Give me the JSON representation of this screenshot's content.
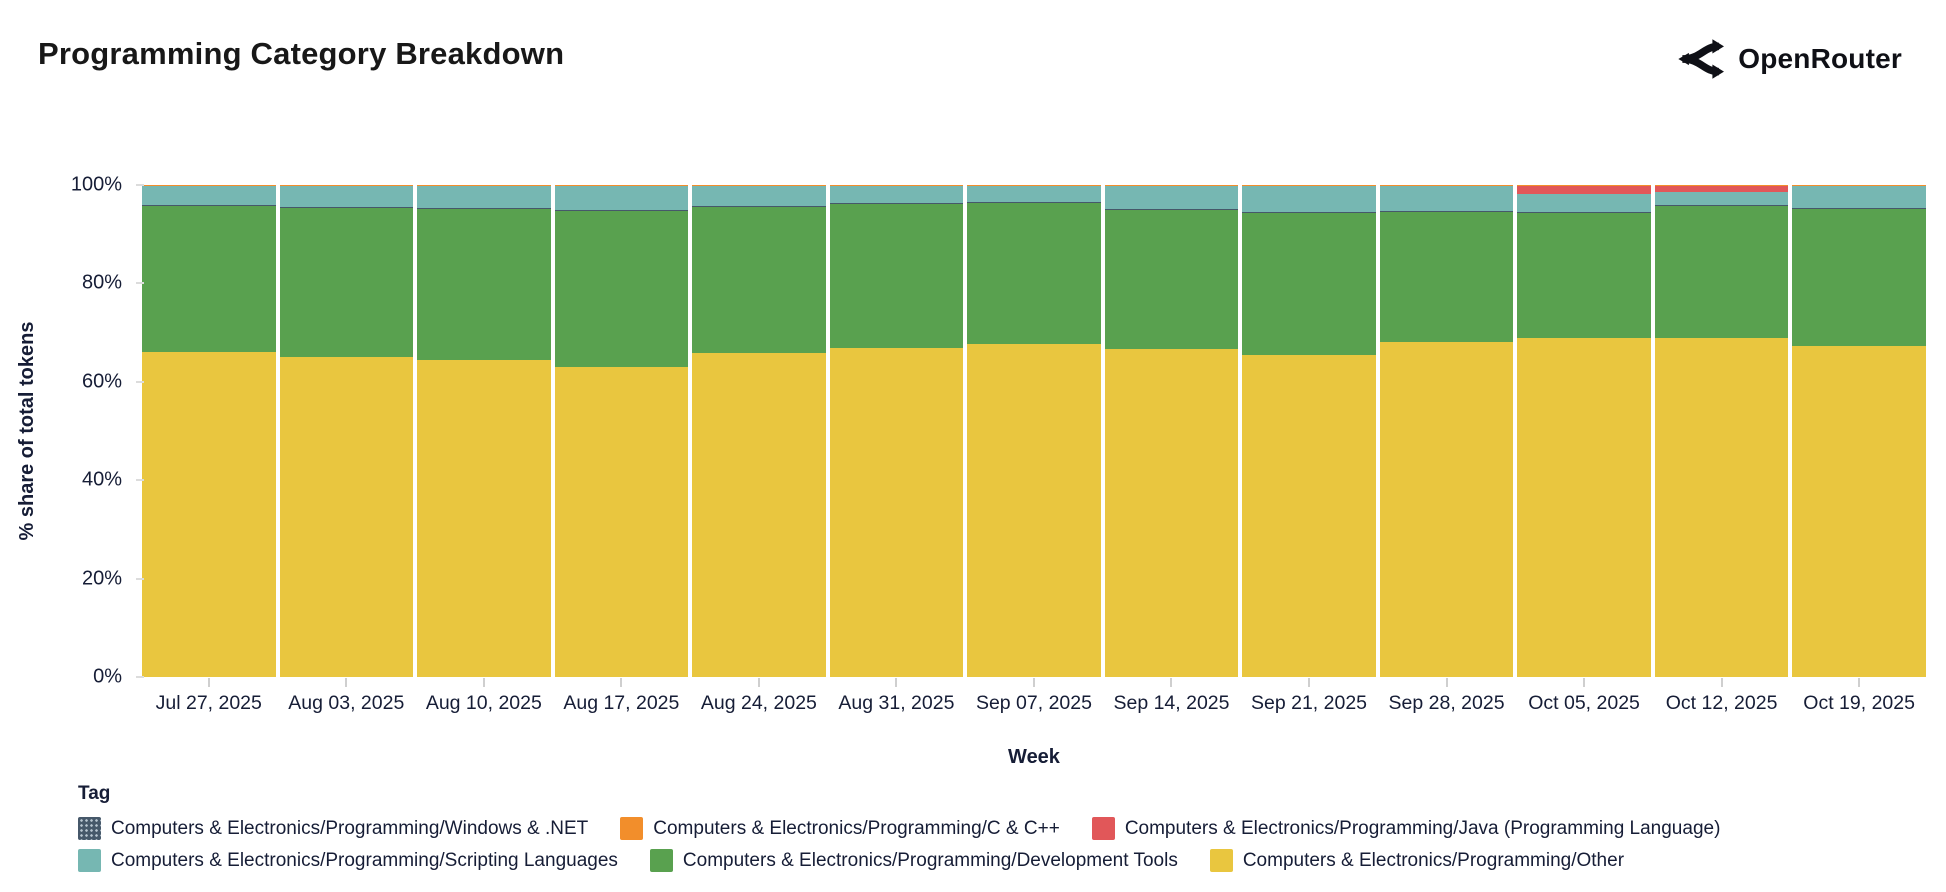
{
  "header": {
    "title": "Programming Category Breakdown",
    "brand": "OpenRouter"
  },
  "chart_data": {
    "type": "bar",
    "stacked": true,
    "xlabel": "Week",
    "ylabel": "% share of total tokens",
    "ylim": [
      0,
      100
    ],
    "grid": false,
    "legend_title": "Tag",
    "legend_position": "bottom",
    "y_ticks": [
      "100%",
      "80%",
      "60%",
      "40%",
      "20%",
      "0%"
    ],
    "categories": [
      "Jul 27, 2025",
      "Aug 03, 2025",
      "Aug 10, 2025",
      "Aug 17, 2025",
      "Aug 24, 2025",
      "Aug 31, 2025",
      "Sep 07, 2025",
      "Sep 14, 2025",
      "Sep 21, 2025",
      "Sep 28, 2025",
      "Oct 05, 2025",
      "Oct 12, 2025",
      "Oct 19, 2025"
    ],
    "stack_order_top_to_bottom": [
      "c_cpp",
      "java",
      "scripting",
      "windows_dotnet",
      "development_tools",
      "other"
    ],
    "legend_rows": [
      [
        "windows_dotnet",
        "c_cpp",
        "java"
      ],
      [
        "scripting",
        "development_tools",
        "other"
      ]
    ],
    "series": [
      {
        "key": "windows_dotnet",
        "name": "Computers & Electronics/Programming/Windows & .NET",
        "color": "#46586a",
        "textured": true,
        "values": [
          0.2,
          0.2,
          0.2,
          0.2,
          0.2,
          0.2,
          0.2,
          0.2,
          0.2,
          0.2,
          0.2,
          0.2,
          0.2
        ]
      },
      {
        "key": "c_cpp",
        "name": "Computers & Electronics/Programming/C & C++",
        "color": "#f28e2b",
        "textured": false,
        "values": [
          0.2,
          0.3,
          0.3,
          0.3,
          0.3,
          0.3,
          0.3,
          0.3,
          0.3,
          0.3,
          0.2,
          0.2,
          0.3
        ]
      },
      {
        "key": "java",
        "name": "Computers & Electronics/Programming/Java (Programming Language)",
        "color": "#e15759",
        "textured": false,
        "values": [
          0,
          0,
          0,
          0,
          0,
          0,
          0,
          0,
          0,
          0,
          1.6,
          1.2,
          0
        ]
      },
      {
        "key": "scripting",
        "name": "Computers & Electronics/Programming/Scripting Languages",
        "color": "#76b7b2",
        "textured": false,
        "values": [
          3.9,
          4.2,
          4.3,
          4.8,
          3.9,
          3.4,
          3.2,
          4.5,
          5.1,
          4.9,
          3.6,
          2.7,
          4.3
        ]
      },
      {
        "key": "development_tools",
        "name": "Computers & Electronics/Programming/Development Tools",
        "color": "#59a14f",
        "textured": false,
        "values": [
          29.6,
          30.2,
          30.7,
          31.7,
          29.7,
          29.2,
          28.6,
          28.3,
          29.0,
          26.6,
          25.6,
          26.8,
          28.0
        ]
      },
      {
        "key": "other",
        "name": "Computers & Electronics/Programming/Other",
        "color": "#e9c63f",
        "textured": false,
        "values": [
          66.1,
          65.1,
          64.5,
          63.0,
          65.9,
          66.9,
          67.7,
          66.7,
          65.4,
          68.0,
          68.8,
          68.9,
          67.2
        ]
      }
    ],
    "colors": {
      "axis_text": "#161d36",
      "tick_mark": "#cfcfcf",
      "title_text": "#181818",
      "swatch_dot": "#b9c6d2"
    }
  }
}
